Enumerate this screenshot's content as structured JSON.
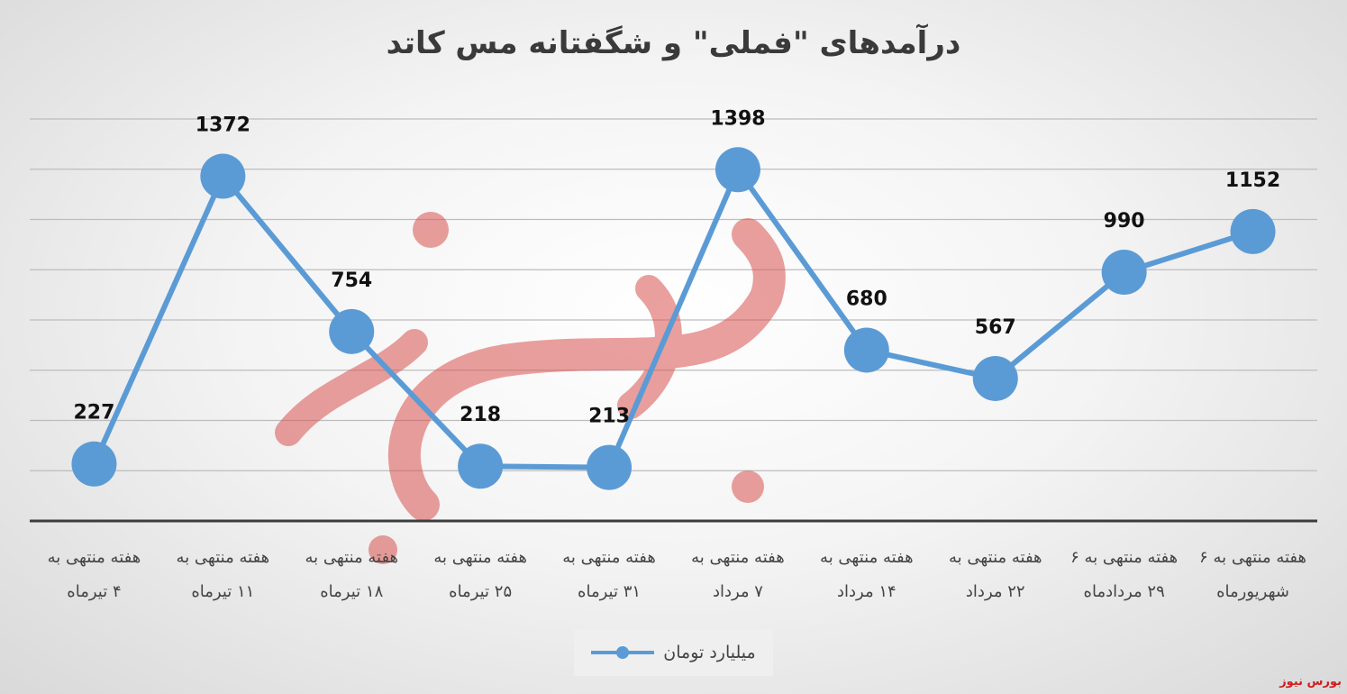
{
  "chart_data": {
    "type": "line",
    "title": "درآمدهای \"فملی\" و شگفتانه مس کاتد",
    "categories": [
      [
        "هفته منتهی به",
        "۴ تیرماه"
      ],
      [
        "هفته منتهی به",
        "۱۱ تیرماه"
      ],
      [
        "هفته منتهی به",
        "۱۸ تیرماه"
      ],
      [
        "هفته منتهی به",
        "۲۵ تیرماه"
      ],
      [
        "هفته منتهی به",
        "۳۱ تیرماه"
      ],
      [
        "هفته منتهی به",
        "۷ مرداد"
      ],
      [
        "هفته منتهی به",
        "۱۴ مرداد"
      ],
      [
        "هفته منتهی به",
        "۲۲ مرداد"
      ],
      [
        "هفته منتهی به ۶",
        "۲۹ مردادماه"
      ],
      [
        "هفته منتهی به ۶",
        "شهریورماه"
      ]
    ],
    "series": [
      {
        "name": "میلیارد تومان",
        "values": [
          227,
          1372,
          754,
          218,
          213,
          1398,
          680,
          567,
          990,
          1152
        ]
      }
    ],
    "ylim": [
      0,
      1600
    ],
    "grid": true,
    "legend": "bottom",
    "color": "#5b9bd5"
  },
  "source_label": "بورس نیوز",
  "watermark": "بورس نیوز"
}
